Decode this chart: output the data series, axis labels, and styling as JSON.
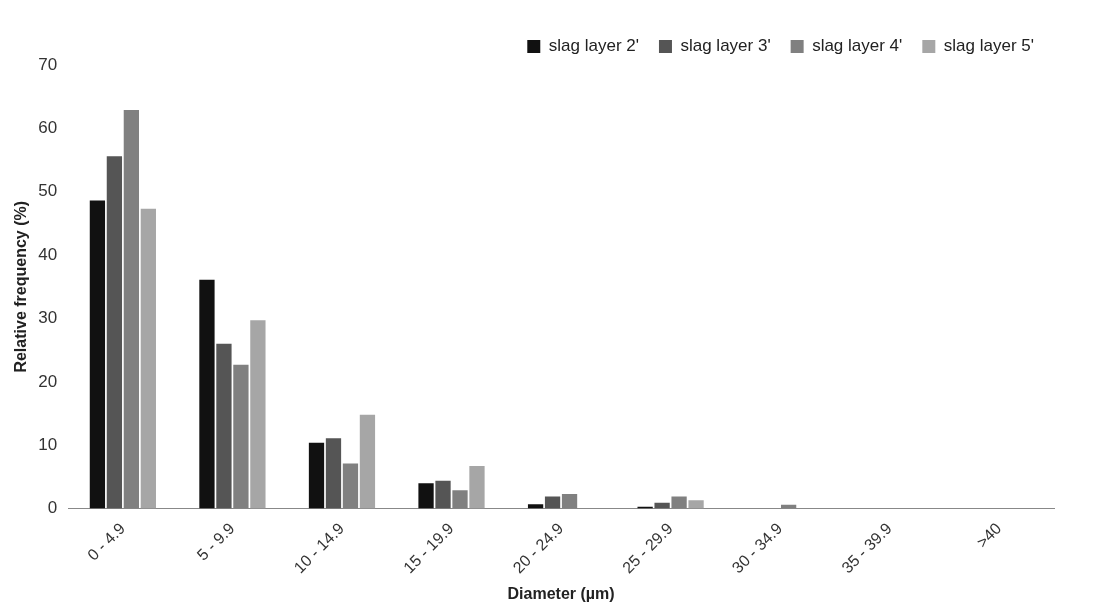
{
  "chart_data": {
    "type": "bar",
    "xlabel": "Diameter (µm)",
    "ylabel": "Relative frequency (%)",
    "categories": [
      "0 - 4.9",
      "5 - 9.9",
      "10 - 14.9",
      "15 - 19.9",
      "20 - 24.9",
      "25 - 29.9",
      "30 - 34.9",
      "35 - 39.9",
      ">40"
    ],
    "series": [
      {
        "name": "slag layer 2'",
        "color": "#111111",
        "values": [
          48.6,
          36.1,
          10.4,
          4.0,
          0.7,
          0.3,
          0,
          0,
          0
        ]
      },
      {
        "name": "slag layer 3'",
        "color": "#555555",
        "values": [
          55.6,
          26.0,
          11.1,
          4.4,
          1.9,
          0.9,
          0,
          0,
          0
        ]
      },
      {
        "name": "slag layer 4'",
        "color": "#808080",
        "values": [
          62.9,
          22.7,
          7.1,
          2.9,
          2.3,
          1.9,
          0.6,
          0,
          0
        ]
      },
      {
        "name": "slag layer 5'",
        "color": "#a6a6a6",
        "values": [
          47.3,
          29.7,
          14.8,
          6.7,
          0,
          1.3,
          0,
          0,
          0
        ]
      }
    ],
    "ylim": [
      0,
      70
    ],
    "yticks": [
      0,
      10,
      20,
      30,
      40,
      50,
      60,
      70
    ],
    "grid": false,
    "legend": "top right"
  }
}
